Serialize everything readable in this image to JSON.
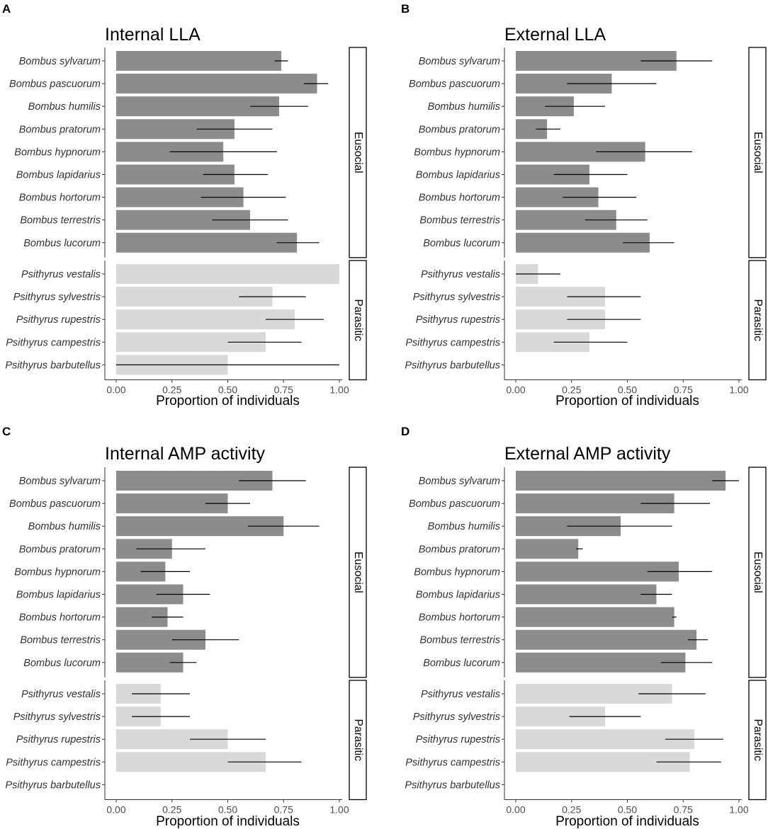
{
  "figure": {
    "type": "horizontal bar chart grid",
    "colors": {
      "eusocial": "#8c8c8c",
      "parasitic": "#d9d9d9",
      "errorbar": "#000000"
    }
  },
  "chart_data": [
    {
      "panel": "A",
      "type": "bar",
      "orientation": "horizontal",
      "title": "Internal LLA",
      "xlabel": "Proportion of individuals",
      "ylabel": "",
      "xlim": [
        0,
        1
      ],
      "xticks": [
        "0.00",
        "0.25",
        "0.50",
        "0.75",
        "1.00"
      ],
      "groups": [
        {
          "name": "Eusocial",
          "categories": [
            "Bombus sylvarum",
            "Bombus pascuorum",
            "Bombus humilis",
            "Bombus pratorum",
            "Bombus hypnorum",
            "Bombus lapidarius",
            "Bombus hortorum",
            "Bombus terrestris",
            "Bombus lucorum"
          ],
          "values": [
            0.74,
            0.9,
            0.73,
            0.53,
            0.48,
            0.53,
            0.57,
            0.6,
            0.81
          ],
          "err_low": [
            0.71,
            0.84,
            0.6,
            0.36,
            0.24,
            0.39,
            0.38,
            0.43,
            0.72
          ],
          "err_high": [
            0.77,
            0.95,
            0.86,
            0.7,
            0.72,
            0.68,
            0.76,
            0.77,
            0.91
          ]
        },
        {
          "name": "Parasitic",
          "categories": [
            "Psithyrus vestalis",
            "Psithyrus sylvestris",
            "Psithyrus rupestris",
            "Psithyrus campestris",
            "Psithyrus barbutellus"
          ],
          "values": [
            1.0,
            0.7,
            0.8,
            0.67,
            0.5
          ],
          "err_low": [
            null,
            0.55,
            0.67,
            0.5,
            0.0
          ],
          "err_high": [
            null,
            0.85,
            0.93,
            0.83,
            1.0
          ]
        }
      ]
    },
    {
      "panel": "B",
      "type": "bar",
      "orientation": "horizontal",
      "title": "External LLA",
      "xlabel": "Proportion of individuals",
      "ylabel": "",
      "xlim": [
        0,
        1
      ],
      "xticks": [
        "0.00",
        "0.25",
        "0.50",
        "0.75",
        "1.00"
      ],
      "groups": [
        {
          "name": "Eusocial",
          "categories": [
            "Bombus sylvarum",
            "Bombus pascuorum",
            "Bombus humilis",
            "Bombus pratorum",
            "Bombus hypnorum",
            "Bombus lapidarius",
            "Bombus hortorum",
            "Bombus terrestris",
            "Bombus lucorum"
          ],
          "values": [
            0.72,
            0.43,
            0.26,
            0.14,
            0.58,
            0.33,
            0.37,
            0.45,
            0.6
          ],
          "err_low": [
            0.56,
            0.23,
            0.13,
            0.09,
            0.36,
            0.17,
            0.21,
            0.31,
            0.48
          ],
          "err_high": [
            0.88,
            0.63,
            0.4,
            0.2,
            0.79,
            0.5,
            0.54,
            0.59,
            0.71
          ]
        },
        {
          "name": "Parasitic",
          "categories": [
            "Psithyrus vestalis",
            "Psithyrus sylvestris",
            "Psithyrus rupestris",
            "Psithyrus campestris",
            "Psithyrus barbutellus"
          ],
          "values": [
            0.1,
            0.4,
            0.4,
            0.33,
            null
          ],
          "err_low": [
            0.0,
            0.23,
            0.23,
            0.17,
            null
          ],
          "err_high": [
            0.2,
            0.56,
            0.56,
            0.5,
            null
          ]
        }
      ]
    },
    {
      "panel": "C",
      "type": "bar",
      "orientation": "horizontal",
      "title": "Internal AMP activity",
      "xlabel": "Proportion of individuals",
      "ylabel": "",
      "xlim": [
        0,
        1
      ],
      "xticks": [
        "0.00",
        "0.25",
        "0.50",
        "0.75",
        "1.00"
      ],
      "groups": [
        {
          "name": "Eusocial",
          "categories": [
            "Bombus sylvarum",
            "Bombus pascuorum",
            "Bombus humilis",
            "Bombus pratorum",
            "Bombus hypnorum",
            "Bombus lapidarius",
            "Bombus hortorum",
            "Bombus terrestris",
            "Bombus lucorum"
          ],
          "values": [
            0.7,
            0.5,
            0.75,
            0.25,
            0.22,
            0.3,
            0.23,
            0.4,
            0.3
          ],
          "err_low": [
            0.55,
            0.4,
            0.59,
            0.09,
            0.11,
            0.18,
            0.16,
            0.25,
            0.24
          ],
          "err_high": [
            0.85,
            0.6,
            0.91,
            0.4,
            0.33,
            0.42,
            0.3,
            0.55,
            0.36
          ]
        },
        {
          "name": "Parasitic",
          "categories": [
            "Psithyrus vestalis",
            "Psithyrus sylvestris",
            "Psithyrus rupestris",
            "Psithyrus campestris",
            "Psithyrus barbutellus"
          ],
          "values": [
            0.2,
            0.2,
            0.5,
            0.67,
            null
          ],
          "err_low": [
            0.07,
            0.07,
            0.33,
            0.5,
            null
          ],
          "err_high": [
            0.33,
            0.33,
            0.67,
            0.83,
            null
          ]
        }
      ]
    },
    {
      "panel": "D",
      "type": "bar",
      "orientation": "horizontal",
      "title": "External AMP activity",
      "xlabel": "Proportion of individuals",
      "ylabel": "",
      "xlim": [
        0,
        1
      ],
      "xticks": [
        "0.00",
        "0.25",
        "0.50",
        "0.75",
        "1.00"
      ],
      "groups": [
        {
          "name": "Eusocial",
          "categories": [
            "Bombus sylvarum",
            "Bombus pascuorum",
            "Bombus humilis",
            "Bombus pratorum",
            "Bombus hypnorum",
            "Bombus lapidarius",
            "Bombus hortorum",
            "Bombus terrestris",
            "Bombus lucorum"
          ],
          "values": [
            0.94,
            0.71,
            0.47,
            0.28,
            0.73,
            0.63,
            0.71,
            0.81,
            0.76
          ],
          "err_low": [
            0.88,
            0.56,
            0.23,
            0.27,
            0.59,
            0.56,
            0.7,
            0.77,
            0.65
          ],
          "err_high": [
            1.0,
            0.87,
            0.7,
            0.3,
            0.88,
            0.7,
            0.72,
            0.86,
            0.88
          ]
        },
        {
          "name": "Parasitic",
          "categories": [
            "Psithyrus vestalis",
            "Psithyrus sylvestris",
            "Psithyrus rupestris",
            "Psithyrus campestris",
            "Psithyrus barbutellus"
          ],
          "values": [
            0.7,
            0.4,
            0.8,
            0.78,
            null
          ],
          "err_low": [
            0.55,
            0.24,
            0.67,
            0.63,
            null
          ],
          "err_high": [
            0.85,
            0.56,
            0.93,
            0.92,
            null
          ]
        }
      ]
    }
  ]
}
